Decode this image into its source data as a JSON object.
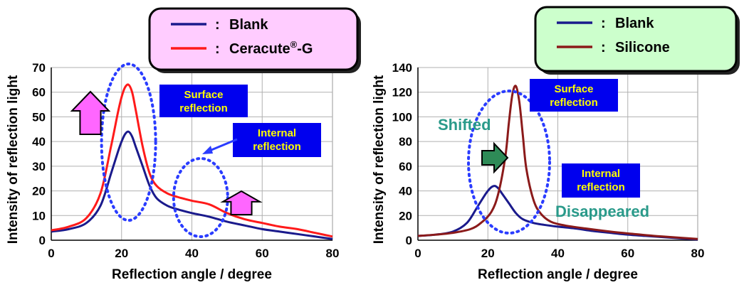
{
  "colors": {
    "blank": "#1a1a8c",
    "ceracute": "#ff1a1a",
    "silicone": "#8b1a1a",
    "box_fill": "#0000ee",
    "box_text": "#ffff00",
    "legend_left_bg": "#ffccff",
    "legend_right_bg": "#ccffcc",
    "annot_teal": "#2a9a8a",
    "up_arrow": "#ff66ff",
    "right_arrow": "#2e8b57",
    "ellipse": "#2a3cff"
  },
  "chart_data": [
    {
      "type": "line",
      "xlabel": "Reflection angle / degree",
      "ylabel": "Intensity of reflection light",
      "xlim": [
        0,
        80
      ],
      "ylim": [
        0,
        70
      ],
      "x_ticks": [
        "0",
        "20",
        "40",
        "60",
        "80"
      ],
      "y_ticks": [
        "0",
        "10",
        "20",
        "30",
        "40",
        "50",
        "60",
        "70"
      ],
      "grid": true,
      "legend": {
        "placement": "top-right",
        "entries": [
          {
            "label": "Blank",
            "marker": ":"
          },
          {
            "label": "Ceracute",
            "sup": "®",
            "suffix": "-G",
            "marker": ":"
          }
        ]
      },
      "series": [
        {
          "name": "Blank",
          "x": [
            0,
            5,
            10,
            14,
            17,
            19,
            20,
            21,
            22,
            23,
            24,
            26,
            28,
            30,
            33,
            36,
            40,
            45,
            50,
            55,
            60,
            65,
            70,
            75,
            80
          ],
          "y": [
            3.5,
            4.5,
            7,
            14,
            27,
            36,
            40,
            43,
            44,
            42,
            38,
            30,
            22,
            17,
            14,
            12.5,
            11,
            9.5,
            7.5,
            6,
            4.5,
            3.5,
            2.5,
            1.5,
            0.5
          ]
        },
        {
          "name": "Ceracute®-G",
          "x": [
            0,
            5,
            10,
            14,
            17,
            19,
            20,
            21,
            22,
            23,
            24,
            26,
            28,
            30,
            33,
            36,
            40,
            45,
            50,
            55,
            60,
            65,
            70,
            75,
            80
          ],
          "y": [
            4,
            5.5,
            9,
            19,
            38,
            52,
            58,
            62,
            63,
            60,
            53,
            38,
            27,
            22,
            19,
            17.5,
            16,
            14.5,
            11,
            8.5,
            7,
            5.5,
            4.5,
            3,
            1.5
          ]
        }
      ],
      "annotations": {
        "surface": "Surface\nreflection",
        "internal": "Internal\nreflection"
      }
    },
    {
      "type": "line",
      "xlabel": "Reflection angle / degree",
      "ylabel": "Intensity of reflection light",
      "xlim": [
        0,
        80
      ],
      "ylim": [
        0,
        140
      ],
      "x_ticks": [
        "0",
        "20",
        "40",
        "60",
        "80"
      ],
      "y_ticks": [
        "0",
        "20",
        "40",
        "60",
        "80",
        "100",
        "120",
        "140"
      ],
      "grid": true,
      "legend": {
        "placement": "top-right",
        "entries": [
          {
            "label": "Blank",
            "marker": ":"
          },
          {
            "label": "Silicone",
            "marker": ":"
          }
        ]
      },
      "series": [
        {
          "name": "Blank",
          "x": [
            0,
            5,
            10,
            14,
            17,
            19,
            20,
            21,
            22,
            23,
            24,
            26,
            28,
            30,
            33,
            36,
            40,
            45,
            50,
            55,
            60,
            65,
            70,
            75,
            80
          ],
          "y": [
            3.5,
            4.5,
            7,
            14,
            27,
            36,
            40,
            43,
            44,
            42,
            38,
            30,
            22,
            17,
            14,
            12.5,
            11,
            9.5,
            7.5,
            6,
            4.5,
            3.5,
            2.5,
            1.5,
            0.5
          ]
        },
        {
          "name": "Silicone",
          "x": [
            0,
            5,
            10,
            15,
            18,
            21,
            23,
            25,
            26,
            27,
            28,
            29,
            30,
            31,
            33,
            35,
            38,
            42,
            48,
            55,
            62,
            70,
            80
          ],
          "y": [
            3.5,
            4.5,
            6,
            9,
            14,
            23,
            38,
            68,
            95,
            118,
            125,
            112,
            85,
            58,
            33,
            22,
            15,
            12,
            9.5,
            7,
            5,
            3,
            1
          ]
        }
      ],
      "annotations": {
        "surface": "Surface\nreflection",
        "internal": "Internal\nreflection",
        "shifted": "Shifted",
        "disappeared": "Disappeared"
      }
    }
  ]
}
